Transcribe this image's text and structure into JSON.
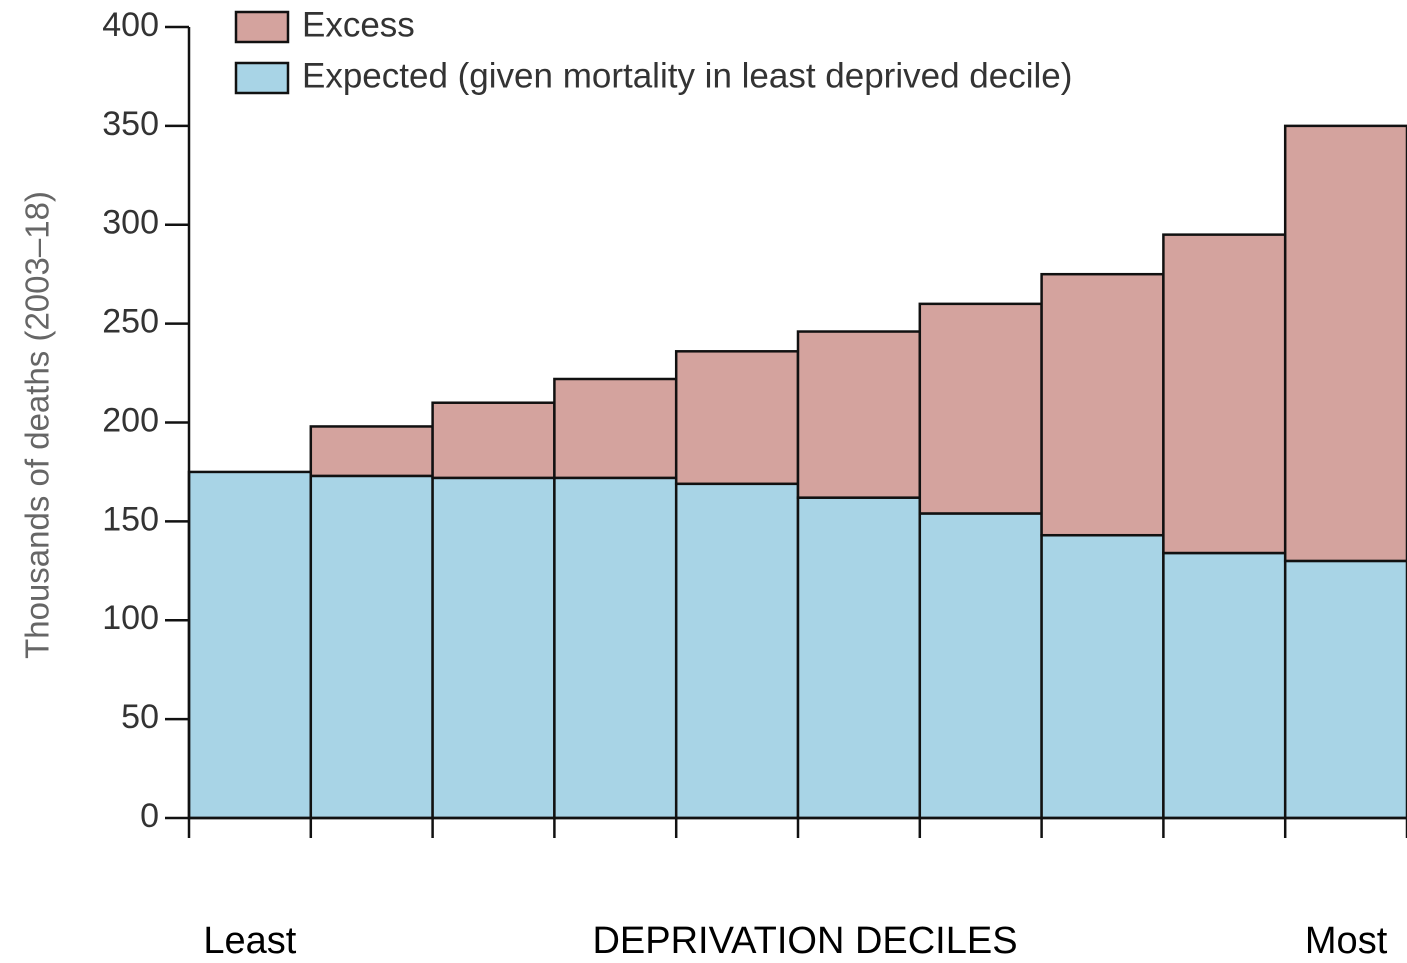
{
  "chart_data": {
    "type": "stacked_bar",
    "y_label": "Thousands of deaths (2003–18)",
    "x_label": "DEPRIVATION DECILES",
    "categories": [
      "Least",
      null,
      null,
      null,
      null,
      null,
      null,
      null,
      null,
      "Most"
    ],
    "series": [
      {
        "name": "Expected (given mortality in least deprived decile)",
        "color": "#a8d4e6",
        "values": [
          175,
          173,
          172,
          172,
          169,
          162,
          154,
          143,
          134,
          130
        ]
      },
      {
        "name": "Excess",
        "color": "#d4a39e",
        "values": [
          0,
          25,
          38,
          50,
          67,
          84,
          106,
          132,
          161,
          220
        ]
      }
    ],
    "ylim": [
      0,
      400
    ],
    "yticks": [
      0,
      50,
      100,
      150,
      200,
      250,
      300,
      350,
      400
    ],
    "legend": "top-left"
  }
}
